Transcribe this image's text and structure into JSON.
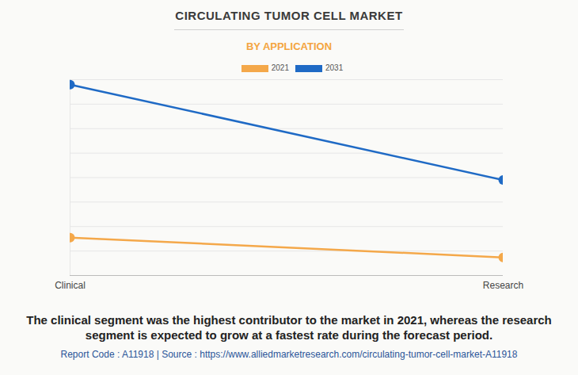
{
  "chart_data": {
    "type": "line",
    "title": "CIRCULATING TUMOR CELL MARKET",
    "subtitle": "BY APPLICATION",
    "caption": "The clinical segment was the highest contributor to the market in 2021, whereas the research segment is expected to grow at a fastest rate during the forecast period.",
    "source": "Report Code : A11918  |  Source : https://www.alliedmarketresearch.com/circulating-tumor-cell-market-A11918",
    "categories": [
      "Clinical",
      "Research"
    ],
    "series": [
      {
        "name": "2021",
        "color": "#f4a84a",
        "values": [
          1.55,
          0.74
        ]
      },
      {
        "name": "2031",
        "color": "#1f6ac5",
        "values": [
          7.8,
          3.9
        ]
      }
    ],
    "ylim": [
      0,
      8
    ],
    "yticks": [
      0,
      1,
      2,
      3,
      4,
      5,
      6,
      7,
      8
    ],
    "grid": true,
    "tick_labels": "x",
    "legend": "top",
    "marker": "circle"
  }
}
